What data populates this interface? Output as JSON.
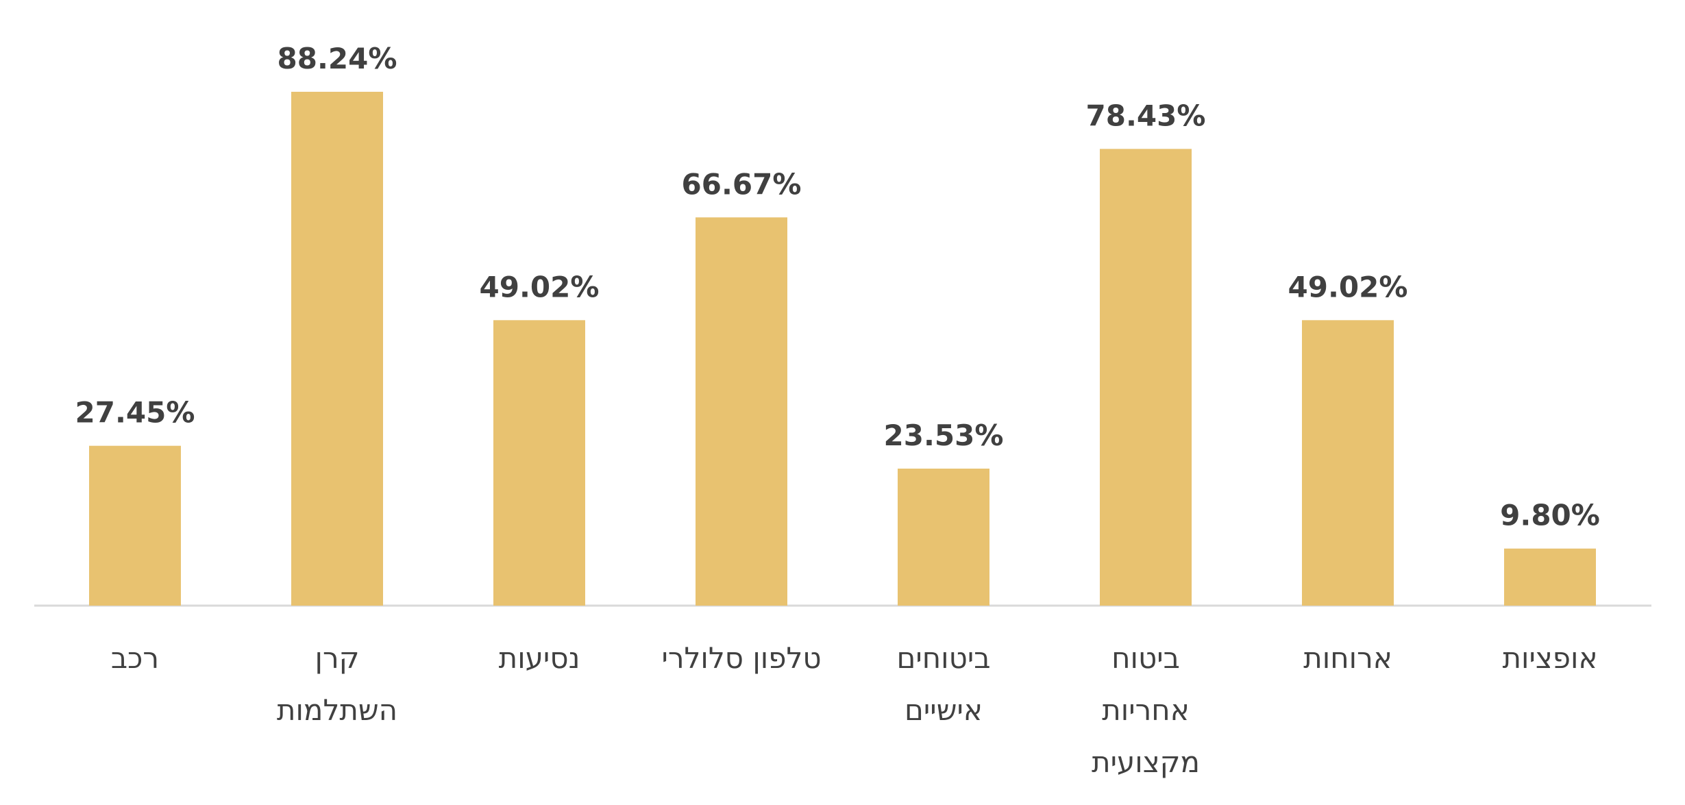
{
  "chart_data": {
    "type": "bar",
    "title": "",
    "xlabel": "",
    "ylabel": "",
    "ylim": [
      0,
      104
    ],
    "grid": false,
    "legend": "none",
    "categories": [
      [
        "רכב"
      ],
      [
        "קרן",
        "השתלמות"
      ],
      [
        "נסיעות"
      ],
      [
        "טלפון סלולרי"
      ],
      [
        "ביטוחים",
        "אישיים"
      ],
      [
        "ביטוח",
        "אחריות",
        "מקצועית"
      ],
      [
        "ארוחות"
      ],
      [
        "אופציות"
      ]
    ],
    "values": [
      27.45,
      88.24,
      49.02,
      66.67,
      23.53,
      78.43,
      49.02,
      9.8
    ],
    "data_labels": [
      "27.45%",
      "88.24%",
      "49.02%",
      "66.67%",
      "23.53%",
      "78.43%",
      "49.02%",
      "9.80%"
    ],
    "colors": {
      "bar": "#E8C270",
      "text": "#404040",
      "axis": "#D9D9D9"
    }
  }
}
